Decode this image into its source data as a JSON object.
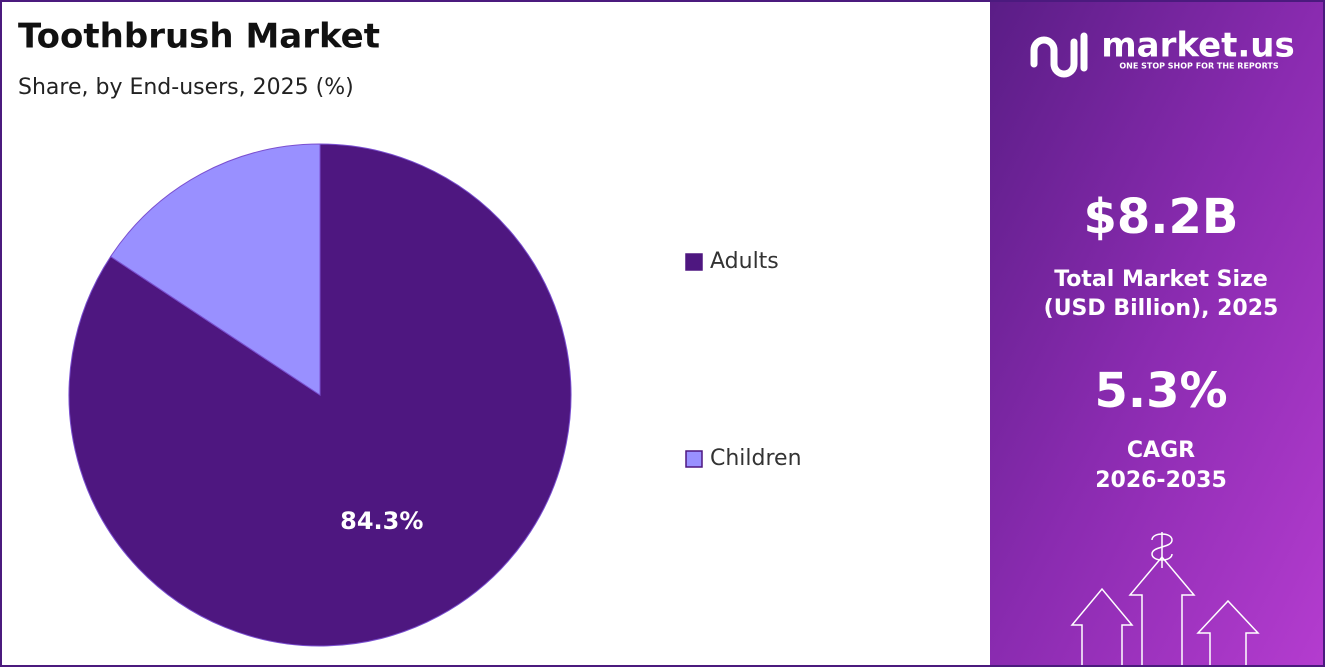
{
  "chart_data": {
    "type": "pie",
    "title": "Toothbrush Market",
    "subtitle": "Share, by End-users, 2025 (%)",
    "categories": [
      "Adults",
      "Children"
    ],
    "values": [
      84.3,
      15.7
    ],
    "value_labels": [
      "84.3%",
      null
    ],
    "colors": [
      "#4e1780",
      "#9990ff"
    ]
  },
  "panel": {
    "brand": "market.us",
    "tagline": "ONE STOP SHOP FOR THE REPORTS",
    "market_size": "$8.2B",
    "market_size_label": [
      "Total Market Size",
      "(USD Billion), 2025"
    ],
    "cagr": "5.3%",
    "cagr_label": [
      "CAGR",
      "2026-2035"
    ]
  }
}
